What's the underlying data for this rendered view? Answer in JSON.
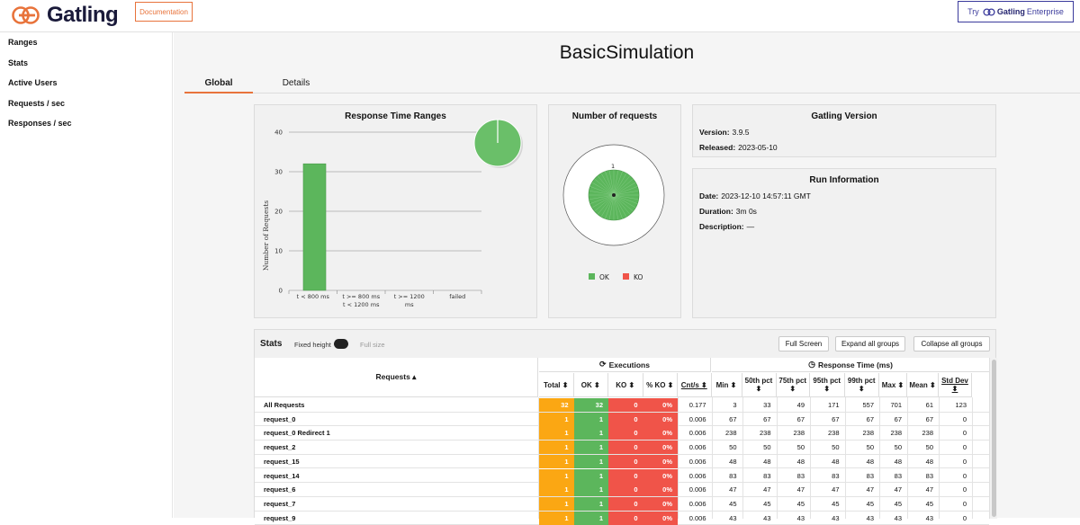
{
  "header": {
    "logo_text": "Gatling",
    "doc_button": "Documentation",
    "enterprise_try": "Try",
    "enterprise_brand": "Gatling",
    "enterprise_name": "Enterprise"
  },
  "sidebar": {
    "items": [
      {
        "label": "Ranges"
      },
      {
        "label": "Stats"
      },
      {
        "label": "Active Users"
      },
      {
        "label": "Requests / sec"
      },
      {
        "label": "Responses / sec"
      }
    ]
  },
  "page_title": "BasicSimulation",
  "tabs": [
    {
      "label": "Global"
    },
    {
      "label": "Details"
    }
  ],
  "ranges_chart": {
    "title": "Response Time Ranges",
    "ylabel": "Number of Requests",
    "yticks": [
      "0",
      "10",
      "20",
      "30",
      "40"
    ],
    "categories": [
      "t < 800 ms",
      "t >= 800 ms\nt < 1200 ms",
      "t >= 1200\nms",
      "failed"
    ],
    "values": [
      32,
      0,
      0,
      0
    ],
    "ylim": [
      0,
      40
    ],
    "pie_share_ok": 1.0,
    "colors": {
      "bar": "#5cb65c",
      "pie": "#6abf69"
    }
  },
  "count_chart": {
    "title": "Number of requests",
    "value_label": "1",
    "legend": [
      {
        "label": "OK",
        "color": "#5cb65c"
      },
      {
        "label": "KO",
        "color": "#f05449"
      }
    ]
  },
  "version_panel": {
    "title": "Gatling Version",
    "version_label": "Version:",
    "version": "3.9.5",
    "released_label": "Released:",
    "released": "2023-05-10"
  },
  "run_panel": {
    "title": "Run Information",
    "date_label": "Date:",
    "date": "2023-12-10 14:57:11 GMT",
    "duration_label": "Duration:",
    "duration": "3m 0s",
    "description_label": "Description:",
    "description": "—"
  },
  "stats": {
    "title": "Stats",
    "fixed_height": "Fixed height",
    "full_size": "Full size",
    "full_screen": "Full Screen",
    "expand_all": "Expand all groups",
    "collapse_all": "Collapse all groups",
    "requests_header": "Requests ▴",
    "executions_header": "Executions",
    "response_time_header": "Response Time (ms)",
    "columns": [
      "Total ⬍",
      "OK ⬍",
      "KO ⬍",
      "% KO ⬍",
      "Cnt/s ⬍",
      "Min ⬍",
      "50th pct ⬍",
      "75th pct ⬍",
      "95th pct ⬍",
      "99th pct ⬍",
      "Max ⬍",
      "Mean ⬍",
      "Std Dev ⬍"
    ],
    "rows": [
      {
        "name": "All Requests",
        "values": [
          "32",
          "32",
          "0",
          "0%",
          "0.177",
          "3",
          "33",
          "49",
          "171",
          "557",
          "701",
          "61",
          "123"
        ]
      },
      {
        "name": "request_0",
        "values": [
          "1",
          "1",
          "0",
          "0%",
          "0.006",
          "67",
          "67",
          "67",
          "67",
          "67",
          "67",
          "67",
          "0"
        ]
      },
      {
        "name": "request_0 Redirect 1",
        "values": [
          "1",
          "1",
          "0",
          "0%",
          "0.006",
          "238",
          "238",
          "238",
          "238",
          "238",
          "238",
          "238",
          "0"
        ]
      },
      {
        "name": "request_2",
        "values": [
          "1",
          "1",
          "0",
          "0%",
          "0.006",
          "50",
          "50",
          "50",
          "50",
          "50",
          "50",
          "50",
          "0"
        ]
      },
      {
        "name": "request_15",
        "values": [
          "1",
          "1",
          "0",
          "0%",
          "0.006",
          "48",
          "48",
          "48",
          "48",
          "48",
          "48",
          "48",
          "0"
        ]
      },
      {
        "name": "request_14",
        "values": [
          "1",
          "1",
          "0",
          "0%",
          "0.006",
          "83",
          "83",
          "83",
          "83",
          "83",
          "83",
          "83",
          "0"
        ]
      },
      {
        "name": "request_6",
        "values": [
          "1",
          "1",
          "0",
          "0%",
          "0.006",
          "47",
          "47",
          "47",
          "47",
          "47",
          "47",
          "47",
          "0"
        ]
      },
      {
        "name": "request_7",
        "values": [
          "1",
          "1",
          "0",
          "0%",
          "0.006",
          "45",
          "45",
          "45",
          "45",
          "45",
          "45",
          "45",
          "0"
        ]
      },
      {
        "name": "request_9",
        "values": [
          "1",
          "1",
          "0",
          "0%",
          "0.006",
          "43",
          "43",
          "43",
          "43",
          "43",
          "43",
          "43",
          "0"
        ]
      }
    ]
  },
  "chart_data": {
    "type": "bar",
    "title": "Response Time Ranges",
    "categories": [
      "t < 800 ms",
      "t >= 800 ms t < 1200 ms",
      "t >= 1200 ms",
      "failed"
    ],
    "values": [
      32,
      0,
      0,
      0
    ],
    "ylabel": "Number of Requests",
    "ylim": [
      0,
      40
    ]
  }
}
